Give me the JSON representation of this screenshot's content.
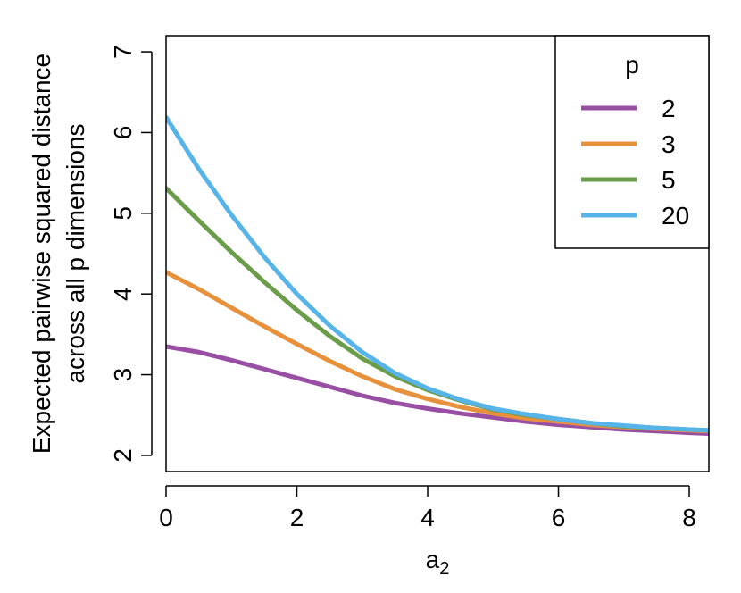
{
  "chart_data": {
    "type": "line",
    "title": "",
    "xlabel_base": "a",
    "xlabel_sub": "2",
    "ylabel_lines": [
      "Expected pairwise squared distance",
      "across all p dimensions"
    ],
    "xlim": [
      0,
      8.3
    ],
    "ylim": [
      1.8,
      7.2
    ],
    "xticks": [
      0,
      2,
      4,
      6,
      8
    ],
    "yticks": [
      2,
      3,
      4,
      5,
      6,
      7
    ],
    "grid": false,
    "legend": {
      "title": "p",
      "position": "top-right"
    },
    "x": [
      0,
      0.5,
      1,
      1.5,
      2,
      2.5,
      3,
      3.5,
      4,
      4.5,
      5,
      5.5,
      6,
      6.5,
      7,
      7.5,
      8,
      8.3
    ],
    "series": [
      {
        "name": "2",
        "color": "#984ea3",
        "values": [
          3.35,
          3.28,
          3.18,
          3.07,
          2.96,
          2.85,
          2.74,
          2.65,
          2.58,
          2.52,
          2.47,
          2.42,
          2.38,
          2.35,
          2.32,
          2.3,
          2.28,
          2.27
        ]
      },
      {
        "name": "3",
        "color": "#e8913d",
        "values": [
          4.27,
          4.06,
          3.83,
          3.6,
          3.38,
          3.17,
          2.98,
          2.82,
          2.7,
          2.6,
          2.52,
          2.46,
          2.42,
          2.38,
          2.35,
          2.33,
          2.31,
          2.3
        ]
      },
      {
        "name": "5",
        "color": "#6a9c4a",
        "values": [
          5.31,
          4.91,
          4.52,
          4.15,
          3.8,
          3.48,
          3.2,
          2.98,
          2.81,
          2.68,
          2.57,
          2.5,
          2.45,
          2.4,
          2.36,
          2.34,
          2.32,
          2.31
        ]
      },
      {
        "name": "20",
        "color": "#56b4e9",
        "values": [
          6.19,
          5.55,
          4.98,
          4.46,
          4.0,
          3.61,
          3.28,
          3.02,
          2.83,
          2.69,
          2.58,
          2.51,
          2.45,
          2.4,
          2.37,
          2.34,
          2.32,
          2.31
        ]
      }
    ]
  }
}
